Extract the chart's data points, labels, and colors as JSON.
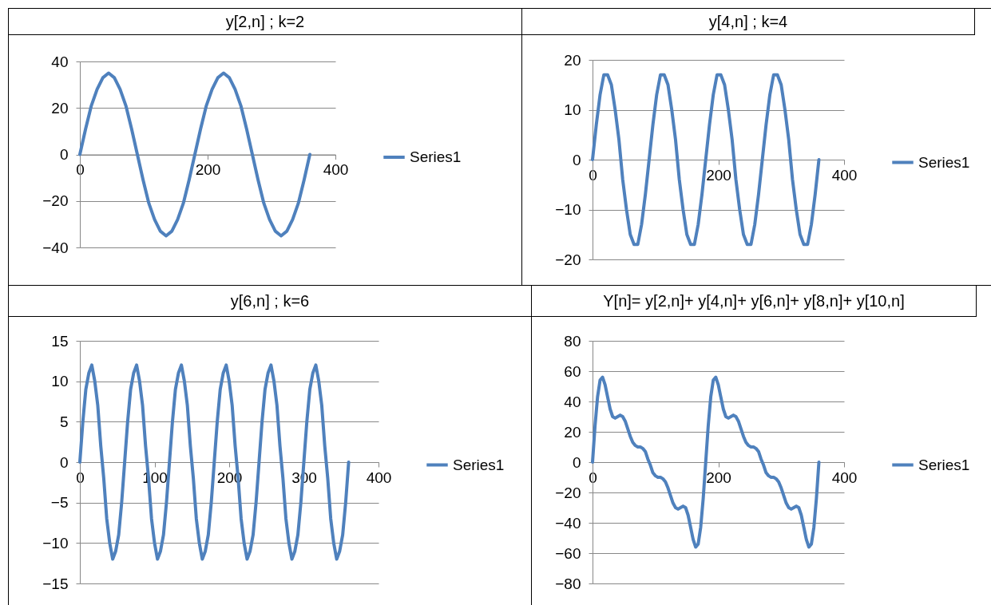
{
  "chart_data": [
    {
      "type": "line",
      "title": "y[2,n] ; k=2",
      "x": [
        0,
        9,
        18,
        27,
        36,
        45,
        54,
        63,
        72,
        81,
        90,
        99,
        108,
        117,
        126,
        135,
        144,
        153,
        162,
        171,
        180,
        189,
        198,
        207,
        216,
        225,
        234,
        243,
        252,
        261,
        270,
        279,
        288,
        297,
        306,
        315,
        324,
        333,
        342,
        351,
        360
      ],
      "series": [
        {
          "name": "Series1",
          "color": "#4f81bd",
          "values": [
            0,
            11,
            21,
            28,
            33,
            35,
            33,
            28,
            21,
            11,
            0,
            -11,
            -21,
            -28,
            -33,
            -35,
            -33,
            -28,
            -21,
            -11,
            0,
            11,
            21,
            28,
            33,
            35,
            33,
            28,
            21,
            11,
            0,
            -11,
            -21,
            -28,
            -33,
            -35,
            -33,
            -28,
            -21,
            -11,
            0
          ]
        }
      ],
      "xlim": [
        0,
        400
      ],
      "xticks": [
        0,
        200,
        400
      ],
      "ylim": [
        -40,
        40
      ],
      "yticks": [
        -40,
        -20,
        0,
        20,
        40
      ],
      "grid": "y",
      "legend": "right",
      "marker": "none",
      "line_style": "solid"
    },
    {
      "type": "line",
      "title": "y[4,n] ; k=4",
      "x": [
        0,
        6,
        12,
        18,
        24,
        30,
        36,
        42,
        48,
        54,
        60,
        66,
        72,
        78,
        84,
        90,
        96,
        102,
        108,
        114,
        120,
        126,
        132,
        138,
        144,
        150,
        156,
        162,
        168,
        174,
        180,
        186,
        192,
        198,
        204,
        210,
        216,
        222,
        228,
        234,
        240,
        246,
        252,
        258,
        264,
        270,
        276,
        282,
        288,
        294,
        300,
        306,
        312,
        318,
        324,
        330,
        336,
        342,
        348,
        354,
        360
      ],
      "series": [
        {
          "name": "Series1",
          "color": "#4f81bd",
          "values": [
            0,
            7,
            13,
            17,
            17,
            15,
            10,
            4,
            -4,
            -10,
            -15,
            -17,
            -17,
            -13,
            -7,
            0,
            7,
            13,
            17,
            17,
            15,
            10,
            4,
            -4,
            -10,
            -15,
            -17,
            -17,
            -13,
            -7,
            0,
            7,
            13,
            17,
            17,
            15,
            10,
            4,
            -4,
            -10,
            -15,
            -17,
            -17,
            -13,
            -7,
            0,
            7,
            13,
            17,
            17,
            15,
            10,
            4,
            -4,
            -10,
            -15,
            -17,
            -17,
            -13,
            -7,
            0
          ]
        }
      ],
      "xlim": [
        0,
        400
      ],
      "xticks": [
        0,
        200,
        400
      ],
      "ylim": [
        -20,
        20
      ],
      "yticks": [
        -20,
        -10,
        0,
        10,
        20
      ],
      "grid": "y",
      "legend": "right",
      "marker": "none",
      "line_style": "solid"
    },
    {
      "type": "line",
      "title": "y[6,n] ; k=6",
      "x": [
        0,
        4,
        8,
        12,
        16,
        20,
        24,
        28,
        32,
        36,
        40,
        44,
        48,
        52,
        56,
        60,
        64,
        68,
        72,
        76,
        80,
        84,
        88,
        92,
        96,
        100,
        104,
        108,
        112,
        116,
        120,
        124,
        128,
        132,
        136,
        140,
        144,
        148,
        152,
        156,
        160,
        164,
        168,
        172,
        176,
        180,
        184,
        188,
        192,
        196,
        200,
        204,
        208,
        212,
        216,
        220,
        224,
        228,
        232,
        236,
        240,
        244,
        248,
        252,
        256,
        260,
        264,
        268,
        272,
        276,
        280,
        284,
        288,
        292,
        296,
        300,
        304,
        308,
        312,
        316,
        320,
        324,
        328,
        332,
        336,
        340,
        344,
        348,
        352,
        356,
        360
      ],
      "series": [
        {
          "name": "Series1",
          "color": "#4f81bd",
          "values": [
            0,
            5,
            9,
            11,
            12,
            10,
            7,
            2,
            -2,
            -7,
            -10,
            -12,
            -11,
            -9,
            -5,
            0,
            5,
            9,
            11,
            12,
            10,
            7,
            2,
            -2,
            -7,
            -10,
            -12,
            -11,
            -9,
            -5,
            0,
            5,
            9,
            11,
            12,
            10,
            7,
            2,
            -2,
            -7,
            -10,
            -12,
            -11,
            -9,
            -5,
            0,
            5,
            9,
            11,
            12,
            10,
            7,
            2,
            -2,
            -7,
            -10,
            -12,
            -11,
            -9,
            -5,
            0,
            5,
            9,
            11,
            12,
            10,
            7,
            2,
            -2,
            -7,
            -10,
            -12,
            -11,
            -9,
            -5,
            0,
            5,
            9,
            11,
            12,
            10,
            7,
            2,
            -2,
            -7,
            -10,
            -12,
            -11,
            -9,
            -5,
            0
          ]
        }
      ],
      "xlim": [
        0,
        400
      ],
      "xticks": [
        0,
        100,
        200,
        300,
        400
      ],
      "ylim": [
        -15,
        15
      ],
      "yticks": [
        -15,
        -10,
        -5,
        0,
        5,
        10,
        15
      ],
      "grid": "y",
      "legend": "right",
      "marker": "none",
      "line_style": "solid"
    },
    {
      "type": "line",
      "title": "Y[n]= y[2,n]+ y[4,n]+ y[6,n]+ y[8,n]+ y[10,n]",
      "x": [
        0,
        4,
        8,
        12,
        16,
        20,
        24,
        28,
        32,
        36,
        40,
        44,
        48,
        52,
        56,
        60,
        64,
        68,
        72,
        76,
        80,
        84,
        88,
        92,
        96,
        100,
        104,
        108,
        112,
        116,
        120,
        124,
        128,
        132,
        136,
        140,
        144,
        148,
        152,
        156,
        160,
        164,
        168,
        172,
        176,
        180,
        184,
        188,
        192,
        196,
        200,
        204,
        208,
        212,
        216,
        220,
        224,
        228,
        232,
        236,
        240,
        244,
        248,
        252,
        256,
        260,
        264,
        268,
        272,
        276,
        280,
        284,
        288,
        292,
        296,
        300,
        304,
        308,
        312,
        316,
        320,
        324,
        328,
        332,
        336,
        340,
        344,
        348,
        352,
        356,
        360
      ],
      "series": [
        {
          "name": "Series1",
          "color": "#4f81bd",
          "values": [
            0,
            24,
            43,
            54,
            56,
            51,
            43,
            35,
            30,
            29,
            30,
            31,
            30,
            27,
            22,
            17,
            13,
            11,
            10,
            10,
            9,
            7,
            2,
            -2,
            -7,
            -9,
            -10,
            -10,
            -11,
            -13,
            -17,
            -22,
            -27,
            -30,
            -31,
            -30,
            -29,
            -30,
            -35,
            -43,
            -51,
            -56,
            -54,
            -43,
            -24,
            0,
            24,
            43,
            54,
            56,
            51,
            43,
            35,
            30,
            29,
            30,
            31,
            30,
            27,
            22,
            17,
            13,
            11,
            10,
            10,
            9,
            7,
            2,
            -2,
            -7,
            -9,
            -10,
            -10,
            -11,
            -13,
            -17,
            -22,
            -27,
            -30,
            -31,
            -30,
            -29,
            -30,
            -35,
            -43,
            -51,
            -56,
            -54,
            -43,
            -24,
            0
          ]
        }
      ],
      "xlim": [
        0,
        400
      ],
      "xticks": [
        0,
        200,
        400
      ],
      "ylim": [
        -80,
        80
      ],
      "yticks": [
        -80,
        -60,
        -40,
        -20,
        0,
        20,
        40,
        60,
        80
      ],
      "grid": "y",
      "legend": "right",
      "marker": "none",
      "line_style": "solid"
    }
  ]
}
